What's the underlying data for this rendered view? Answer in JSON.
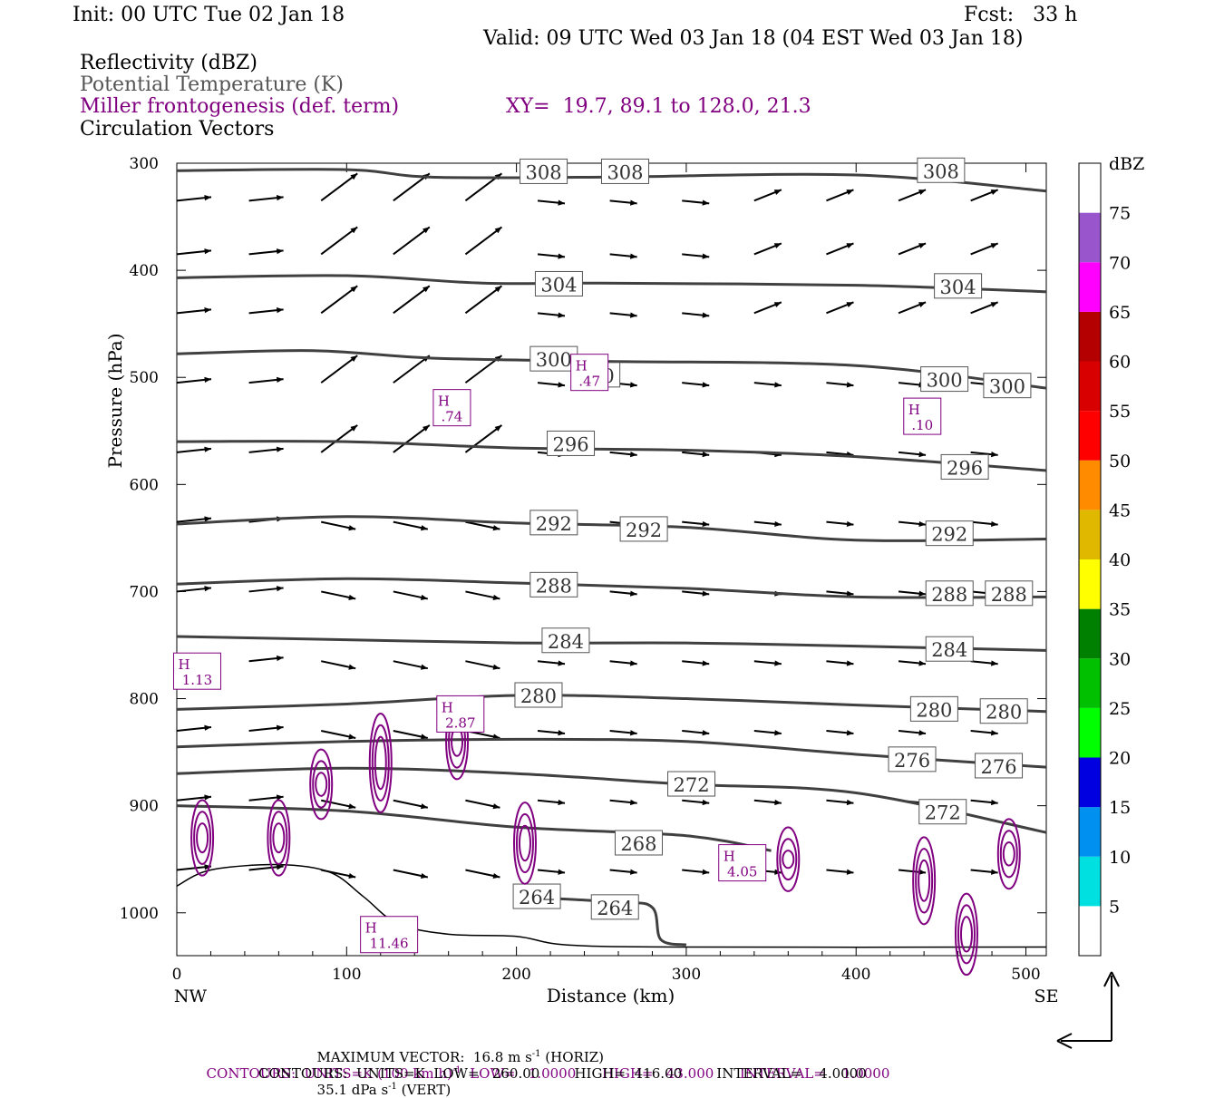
{
  "header": {
    "init": "Init: 00 UTC Tue 02 Jan 18",
    "fcst": "Fcst:   33 h",
    "valid": "Valid: 09 UTC Wed 03 Jan 18 (04 EST Wed 03 Jan 18)",
    "field1": "Reflectivity (dBZ)",
    "field2": "Potential Temperature (K)",
    "field3": "Miller frontogenesis (def. term)",
    "xy": "XY=  19.7, 89.1 to 128.0, 21.3",
    "field4": "Circulation Vectors"
  },
  "colors": {
    "theta": "#404040",
    "fronto": "#800080",
    "text_gray": "#555555"
  },
  "chart_data": {
    "type": "cross-section",
    "xlabel": "Distance (km)",
    "ylabel": "Pressure (hPa)",
    "xlim": [
      0,
      512
    ],
    "ylim": [
      1040,
      300
    ],
    "x_ticks": [
      0,
      100,
      200,
      300,
      400,
      500
    ],
    "y_ticks": [
      300,
      400,
      500,
      600,
      700,
      800,
      900,
      1000
    ],
    "x_end_labels": {
      "left": "NW",
      "right": "SE"
    },
    "theta_contours": [
      {
        "value": 308,
        "p": [
          [
            0,
            307
          ],
          [
            100,
            306
          ],
          [
            150,
            313
          ],
          [
            250,
            313
          ],
          [
            400,
            311
          ],
          [
            512,
            326
          ]
        ],
        "labels": [
          [
            216,
            308
          ],
          [
            264,
            308
          ],
          [
            450,
            307
          ]
        ]
      },
      {
        "value": 304,
        "p": [
          [
            0,
            407
          ],
          [
            100,
            405
          ],
          [
            180,
            412
          ],
          [
            250,
            412
          ],
          [
            400,
            414
          ],
          [
            512,
            420
          ]
        ],
        "labels": [
          [
            225,
            413
          ],
          [
            460,
            415
          ]
        ]
      },
      {
        "value": 300,
        "p": [
          [
            0,
            478
          ],
          [
            80,
            475
          ],
          [
            150,
            482
          ],
          [
            250,
            485
          ],
          [
            400,
            489
          ],
          [
            512,
            510
          ]
        ],
        "labels": [
          [
            222,
            483
          ],
          [
            247,
            498
          ],
          [
            452,
            502
          ],
          [
            489,
            508
          ]
        ]
      },
      {
        "value": 296,
        "p": [
          [
            0,
            560
          ],
          [
            100,
            560
          ],
          [
            200,
            566
          ],
          [
            300,
            568
          ],
          [
            400,
            574
          ],
          [
            512,
            587
          ]
        ],
        "labels": [
          [
            232,
            562
          ],
          [
            464,
            584
          ]
        ]
      },
      {
        "value": 292,
        "p": [
          [
            0,
            637
          ],
          [
            100,
            630
          ],
          [
            200,
            636
          ],
          [
            300,
            640
          ],
          [
            400,
            652
          ],
          [
            512,
            651
          ]
        ],
        "labels": [
          [
            222,
            636
          ],
          [
            275,
            642
          ],
          [
            455,
            646
          ]
        ]
      },
      {
        "value": 288,
        "p": [
          [
            0,
            693
          ],
          [
            100,
            688
          ],
          [
            200,
            692
          ],
          [
            300,
            697
          ],
          [
            400,
            705
          ],
          [
            512,
            705
          ]
        ],
        "labels": [
          [
            222,
            694
          ],
          [
            455,
            702
          ],
          [
            490,
            702
          ]
        ]
      },
      {
        "value": 284,
        "p": [
          [
            0,
            742
          ],
          [
            100,
            745
          ],
          [
            200,
            748
          ],
          [
            300,
            748
          ],
          [
            400,
            751
          ],
          [
            512,
            755
          ]
        ],
        "labels": [
          [
            229,
            746
          ],
          [
            455,
            754
          ]
        ]
      },
      {
        "value": 280,
        "p": [
          [
            0,
            810
          ],
          [
            100,
            805
          ],
          [
            200,
            797
          ],
          [
            300,
            800
          ],
          [
            400,
            806
          ],
          [
            512,
            812
          ]
        ],
        "labels": [
          [
            213,
            797
          ],
          [
            446,
            810
          ],
          [
            487,
            812
          ]
        ]
      },
      {
        "value": 276,
        "p": [
          [
            0,
            845
          ],
          [
            100,
            840
          ],
          [
            200,
            838
          ],
          [
            300,
            840
          ],
          [
            400,
            852
          ],
          [
            512,
            864
          ]
        ],
        "labels": [
          [
            433,
            857
          ],
          [
            484,
            863
          ]
        ]
      },
      {
        "value": 272,
        "p": [
          [
            0,
            870
          ],
          [
            100,
            865
          ],
          [
            200,
            870
          ],
          [
            300,
            880
          ],
          [
            400,
            888
          ],
          [
            512,
            925
          ]
        ],
        "labels": [
          [
            303,
            880
          ],
          [
            451,
            906
          ]
        ]
      },
      {
        "value": 268,
        "p": [
          [
            0,
            900
          ],
          [
            100,
            905
          ],
          [
            200,
            920
          ],
          [
            300,
            928
          ],
          [
            350,
            942
          ]
        ],
        "labels": [
          [
            272,
            935
          ]
        ]
      },
      {
        "value": 264,
        "p": [
          [
            200,
            985
          ],
          [
            260,
            990
          ],
          [
            280,
            995
          ],
          [
            285,
            1025
          ],
          [
            300,
            1030
          ]
        ],
        "labels": [
          [
            212,
            985
          ],
          [
            258,
            995
          ]
        ]
      }
    ],
    "fronto_maxima": [
      {
        "label": "H",
        "value": "1.13",
        "x": 12,
        "p": 776
      },
      {
        "label": "H",
        "value": ".74",
        "x": 162,
        "p": 530
      },
      {
        "label": "H",
        "value": ".47",
        "x": 243,
        "p": 497
      },
      {
        "label": "H",
        "value": ".10",
        "x": 439,
        "p": 538
      },
      {
        "label": "H",
        "value": "2.87",
        "x": 167,
        "p": 816
      },
      {
        "label": "H",
        "value": "11.46",
        "x": 125,
        "p": 1022
      },
      {
        "label": "H",
        "value": "4.05",
        "x": 333,
        "p": 955
      }
    ],
    "colorbar": {
      "title": "dBZ",
      "levels": [
        5,
        10,
        15,
        20,
        25,
        30,
        35,
        40,
        45,
        50,
        55,
        60,
        65,
        70,
        75
      ],
      "colors": [
        "#ffffff",
        "#00e0e0",
        "#0090f0",
        "#0000e0",
        "#00ff00",
        "#00c000",
        "#008000",
        "#ffff00",
        "#e0b800",
        "#ff8c00",
        "#ff0000",
        "#d80000",
        "#b40000",
        "#ff00ff",
        "#9955cc",
        "#ffffff"
      ]
    }
  },
  "footer": {
    "line1a": "MAXIMUM VECTOR:  16.8 m s",
    "line1a_sup": "-1",
    "line1b": " (HORIZ)",
    "line1c": "35.1 dPa s",
    "line1c_sup": "-1",
    "line1d": " (VERT)",
    "line2a": "CONTOURS:  UNITS=K (100 km h)",
    "line2_sup": "-1",
    "line2b": "  LOW=   1.0000      HIGH=   43.000      INTERVAL=    1.0000",
    "line3": "CONTOURS:  UNITS=K  LOW=   260.00        HIGH=  416.00        INTERVAL=    4.0000"
  }
}
